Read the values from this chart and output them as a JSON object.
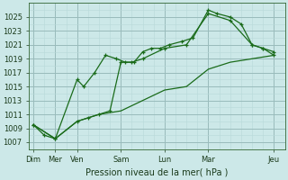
{
  "xlabel": "Pression niveau de la mer( hPa )",
  "bg_color": "#cce8e8",
  "grid_color_minor": "#b8d8d8",
  "grid_color_major": "#99bbbb",
  "line_color": "#1a6b1a",
  "ylim": [
    1006,
    1027
  ],
  "yticks": [
    1007,
    1009,
    1011,
    1013,
    1015,
    1017,
    1019,
    1021,
    1023,
    1025
  ],
  "x_tick_positions": [
    0,
    1,
    2,
    4,
    6,
    8,
    11
  ],
  "x_tick_labels": [
    "Dim",
    "Mer",
    "Ven",
    "Sam",
    "Lun",
    "Mar",
    "Jeu"
  ],
  "xlim": [
    -0.2,
    11.5
  ],
  "series1_x": [
    0,
    0.5,
    1,
    2,
    2.3,
    2.8,
    3.3,
    3.8,
    4.2,
    4.6,
    5.0,
    5.4,
    5.8,
    6.2,
    6.8,
    7.3,
    8,
    8.4,
    9,
    9.5,
    10,
    10.5,
    11
  ],
  "series1_y": [
    1009.5,
    1008.0,
    1007.5,
    1016.0,
    1015.0,
    1017.0,
    1019.5,
    1019.0,
    1018.5,
    1018.5,
    1020.0,
    1020.5,
    1020.5,
    1021.0,
    1021.5,
    1022.0,
    1026.0,
    1025.5,
    1025.0,
    1024.0,
    1021.0,
    1020.5,
    1019.5
  ],
  "series2_x": [
    0,
    1,
    2,
    2.5,
    3.0,
    3.5,
    4.0,
    4.5,
    5.0,
    6.0,
    7.0,
    8.0,
    9.0,
    10.0,
    10.5,
    11.0
  ],
  "series2_y": [
    1009.5,
    1007.5,
    1010.0,
    1010.5,
    1011.0,
    1011.5,
    1018.5,
    1018.5,
    1019.0,
    1020.5,
    1021.0,
    1025.5,
    1024.5,
    1021.0,
    1020.5,
    1020.0
  ],
  "series3_x": [
    0,
    1,
    2,
    3,
    4,
    5,
    6,
    7,
    8,
    9,
    10,
    11
  ],
  "series3_y": [
    1009.5,
    1007.5,
    1010.0,
    1011.0,
    1011.5,
    1013.0,
    1014.5,
    1015.0,
    1017.5,
    1018.5,
    1019.0,
    1019.5
  ]
}
